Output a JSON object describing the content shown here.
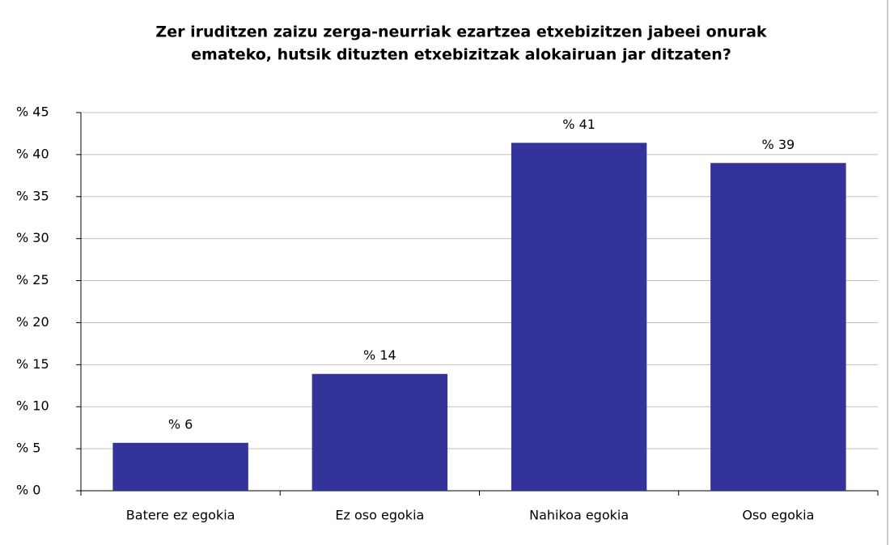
{
  "chart_data": {
    "type": "bar",
    "title": [
      "Zer iruditzen zaizu zerga-neurriak ezartzea etxebizitzen jabeei onurak",
      "emateko, hutsik dituzten etxebizitzak alokairuan jar ditzaten?"
    ],
    "categories": [
      "Batere ez egokia",
      "Ez oso egokia",
      "Nahikoa egokia",
      "Oso egokia"
    ],
    "values": [
      5.7,
      13.9,
      41.4,
      39.0
    ],
    "value_labels": [
      "% 6",
      "% 14",
      "% 41",
      "% 39"
    ],
    "color": "#333399",
    "ylim": [
      0,
      45
    ],
    "yticks": [
      {
        "value": 0,
        "label": "% 0"
      },
      {
        "value": 5,
        "label": "% 5"
      },
      {
        "value": 10,
        "label": "% 10"
      },
      {
        "value": 15,
        "label": "% 15"
      },
      {
        "value": 20,
        "label": "% 20"
      },
      {
        "value": 25,
        "label": "% 25"
      },
      {
        "value": 30,
        "label": "% 30"
      },
      {
        "value": 35,
        "label": "% 35"
      },
      {
        "value": 40,
        "label": "% 40"
      },
      {
        "value": 45,
        "label": "% 45"
      }
    ],
    "grid": true
  }
}
